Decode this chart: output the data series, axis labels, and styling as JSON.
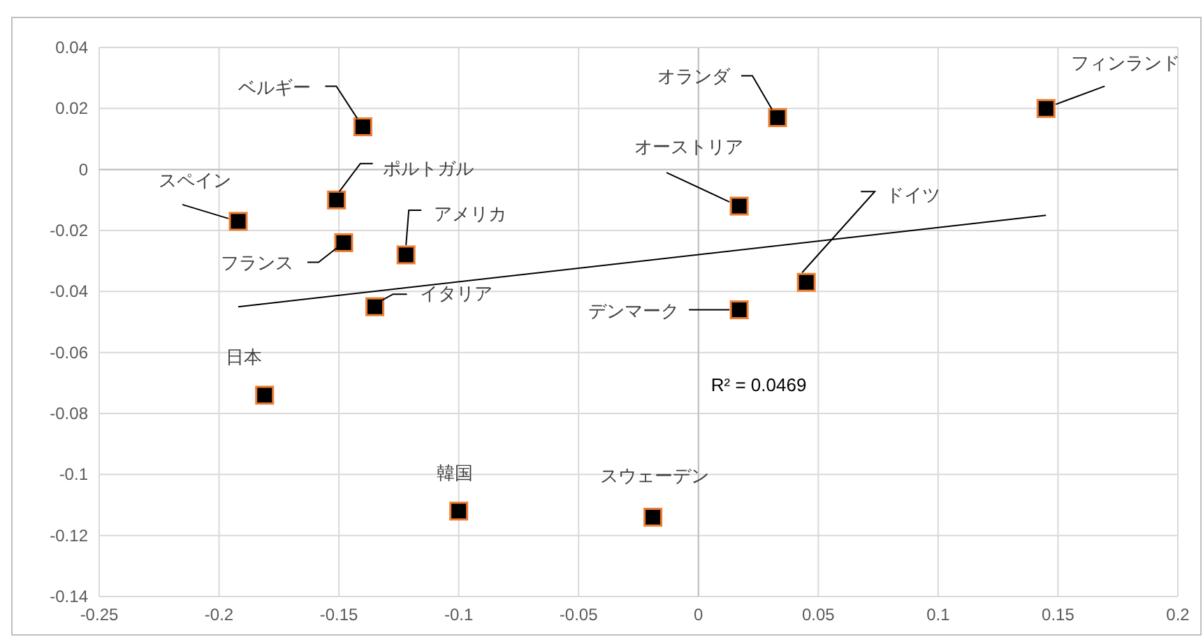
{
  "chart_data": {
    "type": "scatter",
    "xlim": [
      -0.25,
      0.2
    ],
    "ylim": [
      -0.14,
      0.04
    ],
    "xticks": [
      -0.25,
      -0.2,
      -0.15,
      -0.1,
      -0.05,
      0,
      0.05,
      0.1,
      0.15,
      0.2
    ],
    "yticks": [
      -0.14,
      -0.12,
      -0.1,
      -0.08,
      -0.06,
      -0.04,
      -0.02,
      0,
      0.02,
      0.04
    ],
    "grid": true,
    "annotations": [
      "R² = 0.0469"
    ],
    "series": [
      {
        "marker": "square",
        "color": "#000000",
        "x": [
          -0.192,
          -0.14,
          -0.151,
          -0.148,
          -0.122,
          -0.135,
          -0.181,
          -0.1,
          -0.019,
          0.033,
          0.017,
          0.017,
          0.045,
          0.145
        ],
        "values": [
          -0.017,
          0.014,
          -0.01,
          -0.024,
          -0.028,
          -0.045,
          -0.074,
          -0.112,
          -0.114,
          0.017,
          -0.012,
          -0.046,
          -0.037,
          0.02
        ],
        "value_labels": [
          "スペイン",
          "ベルギー",
          "ポルトガル",
          "フランス",
          "アメリカ",
          "イタリア",
          "日本",
          "韓国",
          "スウェーデン",
          "オランダ",
          "オーストリア",
          "デンマーク",
          "ドイツ",
          "フィンランド"
        ]
      },
      {
        "type": "line",
        "color": "#000000",
        "x": [
          -0.192,
          0.145
        ],
        "values": [
          -0.045,
          -0.015
        ]
      }
    ]
  }
}
